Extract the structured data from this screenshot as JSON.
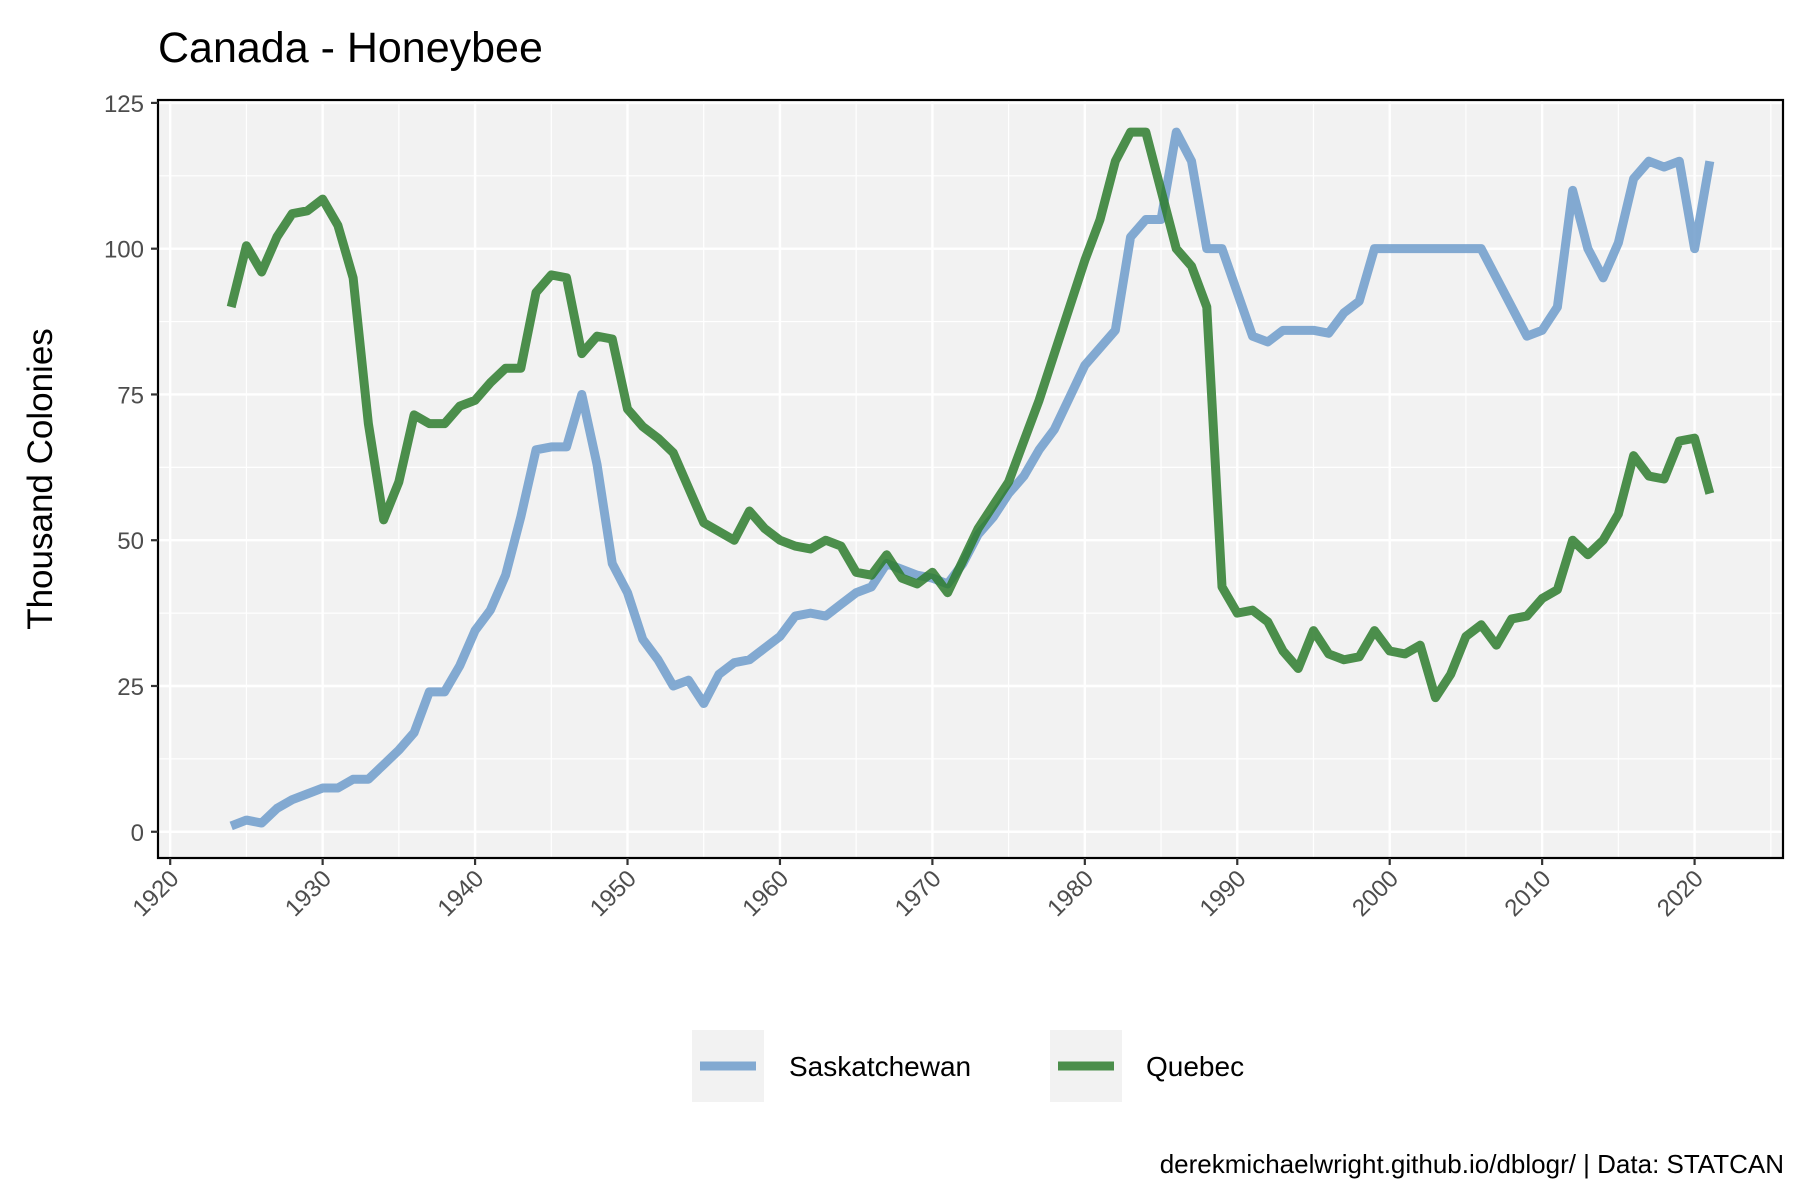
{
  "chart_data": {
    "type": "line",
    "title": "Canada - Honeybee",
    "xlabel": "",
    "ylabel": "Thousand Colonies",
    "caption": "derekmichaelwright.github.io/dblogr/ | Data: STATCAN",
    "xlim": [
      1919.2,
      2025.8
    ],
    "ylim": [
      -4.5,
      125.5
    ],
    "x_ticks": [
      1920,
      1930,
      1940,
      1950,
      1960,
      1970,
      1980,
      1990,
      2000,
      2010,
      2020
    ],
    "x_tick_labels": [
      "1920",
      "1930",
      "1940",
      "1950",
      "1960",
      "1970",
      "1980",
      "1990",
      "2000",
      "2010",
      "2020"
    ],
    "y_ticks": [
      0,
      25,
      50,
      75,
      100,
      125
    ],
    "y_tick_labels": [
      "0",
      "25",
      "50",
      "75",
      "100",
      "125"
    ],
    "grid": true,
    "legend_position": "bottom",
    "years": [
      1924,
      1925,
      1926,
      1927,
      1928,
      1929,
      1930,
      1931,
      1932,
      1933,
      1934,
      1935,
      1936,
      1937,
      1938,
      1939,
      1940,
      1941,
      1942,
      1943,
      1944,
      1945,
      1946,
      1947,
      1948,
      1949,
      1950,
      1951,
      1952,
      1953,
      1954,
      1955,
      1956,
      1957,
      1958,
      1959,
      1960,
      1961,
      1962,
      1963,
      1964,
      1965,
      1966,
      1967,
      1968,
      1969,
      1970,
      1971,
      1972,
      1973,
      1974,
      1975,
      1976,
      1977,
      1978,
      1979,
      1980,
      1981,
      1982,
      1983,
      1984,
      1985,
      1986,
      1987,
      1988,
      1989,
      1990,
      1991,
      1992,
      1993,
      1994,
      1995,
      1996,
      1997,
      1998,
      1999,
      2000,
      2001,
      2002,
      2003,
      2004,
      2005,
      2006,
      2007,
      2008,
      2009,
      2010,
      2011,
      2012,
      2013,
      2014,
      2015,
      2016,
      2017,
      2018,
      2019,
      2020,
      2021
    ],
    "series": [
      {
        "name": "Saskatchewan",
        "color": "#6f9ccb",
        "values": [
          1,
          2,
          1.5,
          4,
          5.5,
          6.5,
          7.5,
          7.5,
          9,
          9,
          11.5,
          14,
          17,
          24,
          24,
          28.5,
          34.5,
          38,
          44,
          54,
          65.5,
          66,
          66,
          75,
          63,
          46,
          41,
          33,
          29.5,
          25,
          26,
          22,
          27,
          29,
          29.5,
          31.5,
          33.5,
          37,
          37.5,
          37,
          39,
          41,
          42,
          46,
          45,
          44,
          43.5,
          42.5,
          46,
          51,
          54,
          58,
          61,
          65.5,
          69,
          74.5,
          80,
          83,
          86,
          102,
          105,
          105,
          120,
          115,
          100,
          100,
          92.5,
          85,
          84,
          86,
          86,
          86,
          85.5,
          89,
          91,
          100,
          100,
          100,
          100,
          100,
          100,
          100,
          100,
          95,
          90,
          85,
          86,
          90,
          110,
          100,
          95,
          101,
          112,
          115,
          114,
          115,
          100,
          115
        ]
      },
      {
        "name": "Quebec",
        "color": "#2e7d2e",
        "values": [
          90,
          100.5,
          96,
          102,
          106,
          106.5,
          108.5,
          104,
          95,
          70,
          53.5,
          60,
          71.5,
          70,
          70,
          73,
          74,
          77,
          79.5,
          79.5,
          92.5,
          95.5,
          95,
          82,
          85,
          84.5,
          72.5,
          69.5,
          67.5,
          65,
          59,
          53,
          51.5,
          50,
          55,
          52,
          50,
          49,
          48.5,
          50,
          49,
          44.5,
          44,
          47.5,
          43.5,
          42.5,
          44.5,
          41,
          46.5,
          52,
          56,
          60,
          67,
          74,
          82,
          90,
          98,
          105,
          115,
          120,
          120,
          110,
          100,
          97,
          90,
          42,
          37.5,
          38,
          36,
          31,
          28,
          34.5,
          30.5,
          29.5,
          30,
          34.5,
          31,
          30.5,
          32,
          23,
          27,
          33.5,
          35.5,
          32,
          36.5,
          37,
          40,
          41.5,
          50,
          47.5,
          50,
          54.5,
          64.5,
          61,
          60.5,
          67,
          67.5,
          58
        ]
      }
    ]
  }
}
